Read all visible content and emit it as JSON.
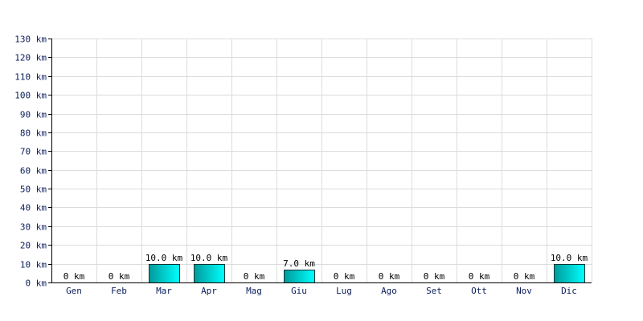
{
  "chart_data": {
    "type": "bar",
    "title": "",
    "xlabel": "",
    "ylabel": "",
    "unit": "km",
    "categories": [
      "Gen",
      "Feb",
      "Mar",
      "Apr",
      "Mag",
      "Giu",
      "Lug",
      "Ago",
      "Set",
      "Ott",
      "Nov",
      "Dic"
    ],
    "values": [
      0,
      0,
      10,
      10,
      0,
      7,
      0,
      0,
      0,
      0,
      0,
      10
    ],
    "data_labels": [
      "0 km",
      "0 km",
      "10.0 km",
      "10.0 km",
      "0 km",
      "7.0 km",
      "0 km",
      "0 km",
      "0 km",
      "0 km",
      "0 km",
      "10.0 km"
    ],
    "y_ticks": [
      0,
      10,
      20,
      30,
      40,
      50,
      60,
      70,
      80,
      90,
      100,
      110,
      120,
      130
    ],
    "y_tick_labels": [
      "0 km",
      "10 km",
      "20 km",
      "30 km",
      "40 km",
      "50 km",
      "60 km",
      "70 km",
      "80 km",
      "90 km",
      "100 km",
      "110 km",
      "120 km",
      "130 km"
    ],
    "ylim": [
      0,
      130
    ],
    "grid": true,
    "legend": "none",
    "colors": {
      "bar_dark": "#009a9a",
      "bar_light": "#00ffff",
      "bar_edge": "#003333",
      "grid": "#dcdcdc",
      "axis": "#000000"
    }
  }
}
